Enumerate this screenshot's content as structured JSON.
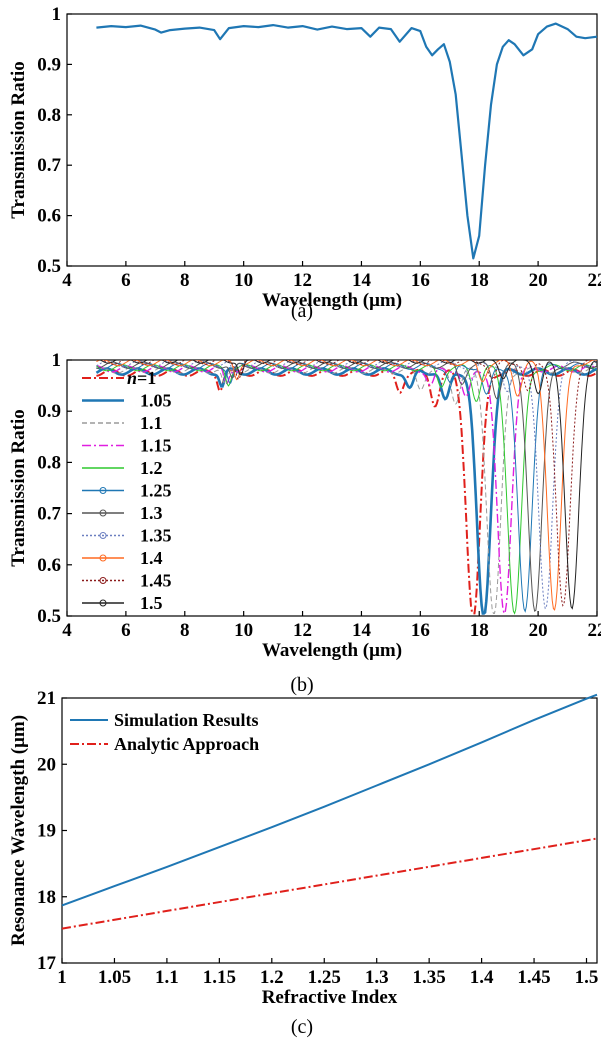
{
  "chart_data": [
    {
      "panel": "(a)",
      "type": "line",
      "xlabel": "Wavelength (μm)",
      "ylabel": "Transmission Ratio",
      "xlim": [
        4,
        22
      ],
      "ylim": [
        0.5,
        1.0
      ],
      "xticks": [
        "4",
        "6",
        "8",
        "10",
        "12",
        "14",
        "16",
        "18",
        "20",
        "22"
      ],
      "yticks": [
        "0.5",
        "0.6",
        "0.7",
        "0.8",
        "0.9",
        "1"
      ],
      "grid": false,
      "series": [
        {
          "color": "#1f77b4",
          "x": [
            5.0,
            5.5,
            6.0,
            6.5,
            7.0,
            7.2,
            7.5,
            8.0,
            8.5,
            9.0,
            9.2,
            9.5,
            10.0,
            10.5,
            11.0,
            11.5,
            12.0,
            12.5,
            13.0,
            13.5,
            14.0,
            14.3,
            14.6,
            15.0,
            15.3,
            15.7,
            16.0,
            16.2,
            16.4,
            16.6,
            16.8,
            17.0,
            17.2,
            17.4,
            17.6,
            17.8,
            18.0,
            18.2,
            18.4,
            18.6,
            18.8,
            19.0,
            19.2,
            19.5,
            19.8,
            20.0,
            20.3,
            20.6,
            21.0,
            21.3,
            21.6,
            22.0
          ],
          "y": [
            0.973,
            0.976,
            0.974,
            0.977,
            0.969,
            0.963,
            0.968,
            0.971,
            0.973,
            0.968,
            0.95,
            0.972,
            0.976,
            0.974,
            0.978,
            0.973,
            0.976,
            0.969,
            0.975,
            0.97,
            0.972,
            0.955,
            0.973,
            0.97,
            0.945,
            0.972,
            0.966,
            0.935,
            0.918,
            0.93,
            0.94,
            0.905,
            0.84,
            0.72,
            0.6,
            0.515,
            0.56,
            0.7,
            0.82,
            0.9,
            0.935,
            0.948,
            0.94,
            0.918,
            0.93,
            0.96,
            0.975,
            0.981,
            0.97,
            0.955,
            0.952,
            0.955
          ]
        }
      ]
    },
    {
      "panel": "(b)",
      "type": "line",
      "xlabel": "Wavelength (μm)",
      "ylabel": "Transmission Ratio",
      "xlim": [
        4,
        22
      ],
      "ylim": [
        0.5,
        1.0
      ],
      "xticks": [
        "4",
        "6",
        "8",
        "10",
        "12",
        "14",
        "16",
        "18",
        "20",
        "22"
      ],
      "yticks": [
        "0.5",
        "0.6",
        "0.7",
        "0.8",
        "0.9",
        "1"
      ],
      "grid": false,
      "legend_position": "left",
      "series": [
        {
          "name": "n=1",
          "color": "#e0201b",
          "style": "dash-dot",
          "dip_x": 17.8,
          "width": 2.0
        },
        {
          "name": "1.05",
          "color": "#1f77b4",
          "style": "solid",
          "dip_x": 18.15,
          "width": 2.6
        },
        {
          "name": "1.1",
          "color": "#9a9a9a",
          "style": "dashed",
          "dip_x": 18.5,
          "width": 1.0
        },
        {
          "name": "1.15",
          "color": "#e01ee0",
          "style": "dash-dot",
          "dip_x": 18.85,
          "width": 1.4
        },
        {
          "name": "1.2",
          "color": "#2ec82e",
          "style": "solid",
          "dip_x": 19.2,
          "width": 1.0
        },
        {
          "name": "1.25",
          "color": "#1f77b4",
          "style": "solid-marker",
          "dip_x": 19.55,
          "width": 1.0
        },
        {
          "name": "1.3",
          "color": "#555555",
          "style": "solid-marker",
          "dip_x": 19.9,
          "width": 1.0
        },
        {
          "name": "1.35",
          "color": "#6b7fc0",
          "style": "dotted-marker",
          "dip_x": 20.25,
          "width": 1.0
        },
        {
          "name": "1.4",
          "color": "#ff6a20",
          "style": "solid-marker",
          "dip_x": 20.55,
          "width": 1.0
        },
        {
          "name": "1.45",
          "color": "#8b1a1a",
          "style": "dotted-marker",
          "dip_x": 20.85,
          "width": 1.0
        },
        {
          "name": "1.5",
          "color": "#222222",
          "style": "solid-marker",
          "dip_x": 21.15,
          "width": 1.0
        }
      ]
    },
    {
      "panel": "(c)",
      "type": "line",
      "xlabel": "Refractive Index",
      "ylabel": "Resonance Wavelength (μm)",
      "xlim": [
        1.0,
        1.51
      ],
      "ylim": [
        17,
        21
      ],
      "xticks": [
        "1",
        "1.05",
        "1.1",
        "1.15",
        "1.2",
        "1.25",
        "1.3",
        "1.35",
        "1.4",
        "1.45",
        "1.5"
      ],
      "yticks": [
        "17",
        "18",
        "19",
        "20",
        "21"
      ],
      "grid": false,
      "legend_position": "top-left",
      "series": [
        {
          "name": "Simulation Results",
          "color": "#1f77b4",
          "style": "solid",
          "x": [
            1.0,
            1.05,
            1.1,
            1.15,
            1.2,
            1.25,
            1.3,
            1.35,
            1.4,
            1.45,
            1.5,
            1.51
          ],
          "y": [
            17.87,
            18.16,
            18.45,
            18.75,
            19.05,
            19.36,
            19.68,
            20.0,
            20.33,
            20.67,
            20.99,
            21.05
          ]
        },
        {
          "name": "Analytic Approach",
          "color": "#e0201b",
          "style": "dash-dot",
          "x": [
            1.0,
            1.51
          ],
          "y": [
            17.52,
            18.88
          ]
        }
      ]
    }
  ],
  "captions": [
    "(a)",
    "(b)",
    "(c)"
  ]
}
